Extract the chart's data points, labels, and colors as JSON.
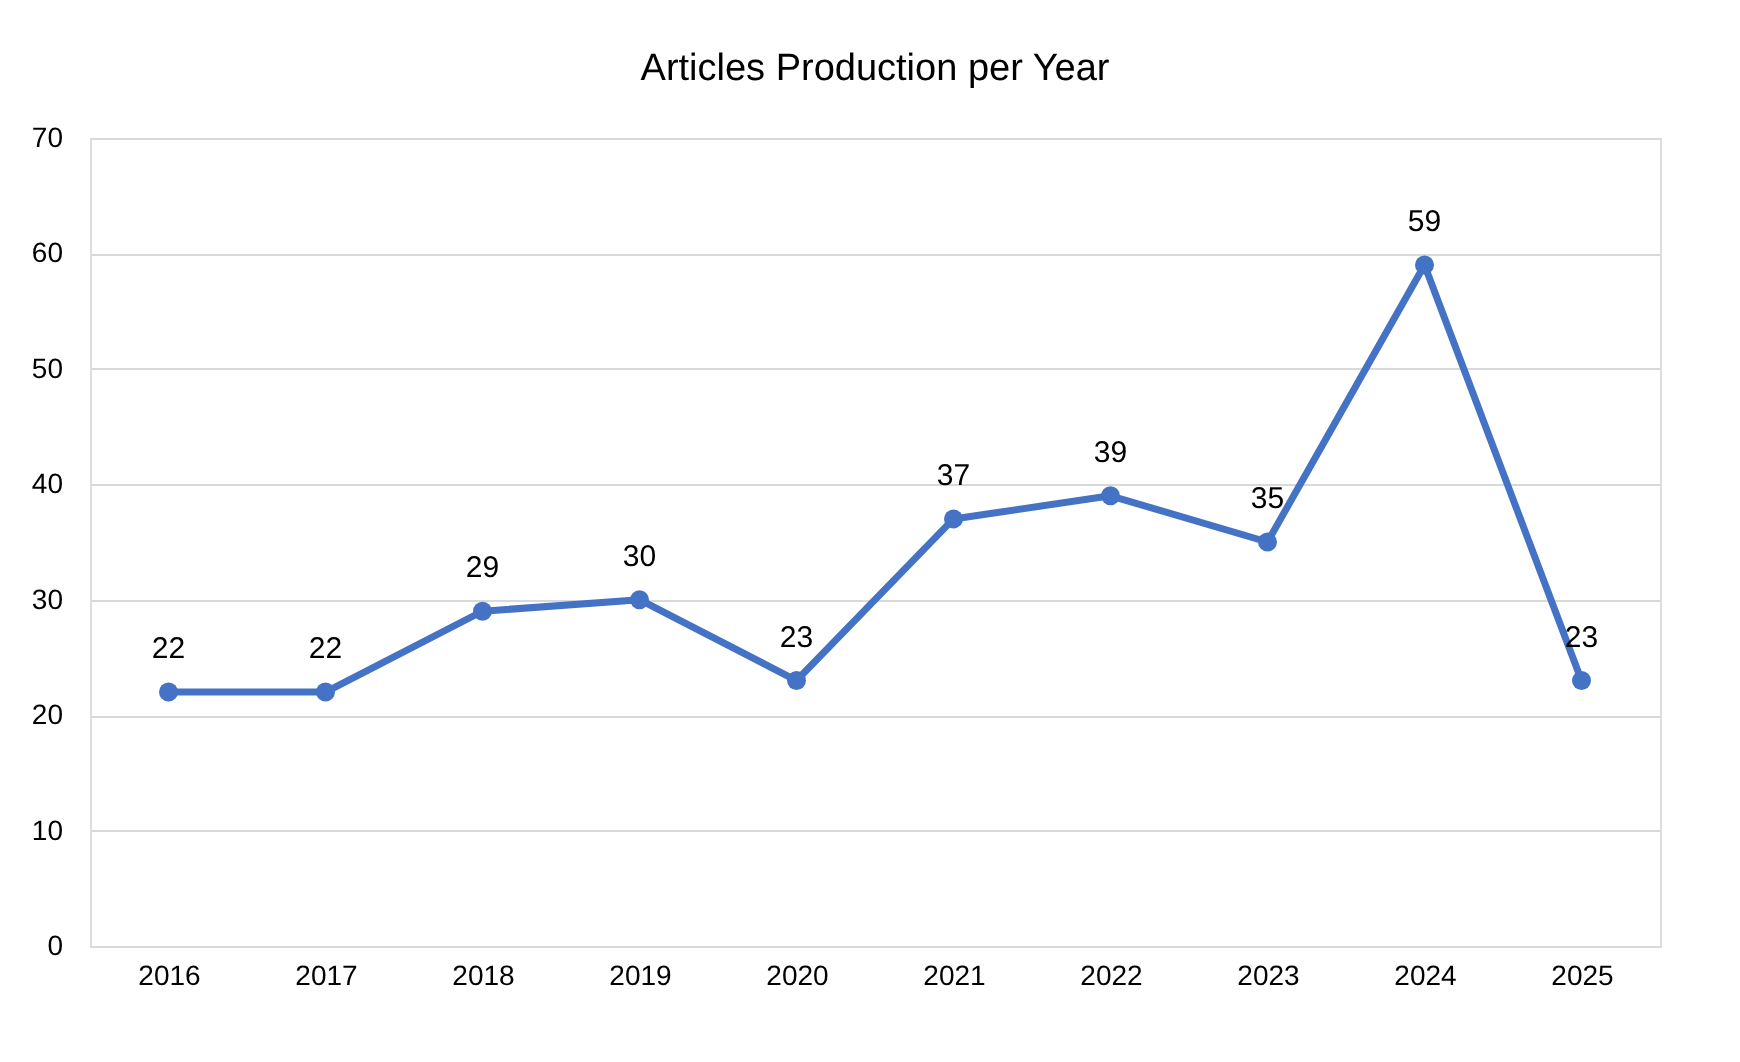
{
  "chart_data": {
    "type": "line",
    "title": "Articles Production per Year",
    "categories": [
      "2016",
      "2017",
      "2018",
      "2019",
      "2020",
      "2021",
      "2022",
      "2023",
      "2024",
      "2025"
    ],
    "series": [
      {
        "color": "#4472c4",
        "values": [
          22,
          22,
          29,
          30,
          23,
          37,
          39,
          35,
          59,
          23
        ]
      }
    ],
    "ylim": [
      0,
      70
    ],
    "yticks": [
      0,
      10,
      20,
      30,
      40,
      50,
      60,
      70
    ],
    "grid": "y",
    "marker": "circle",
    "line_style": "solid",
    "data_labels": true
  }
}
